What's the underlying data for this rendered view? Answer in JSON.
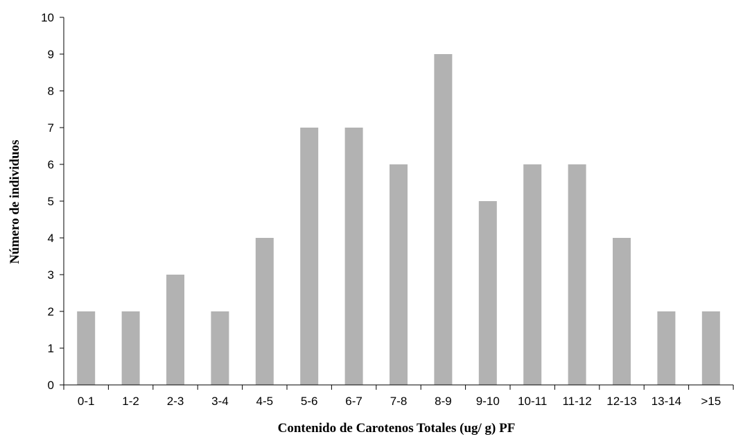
{
  "chart_data": {
    "type": "bar",
    "title": "",
    "xlabel": "Contenido de Carotenos Totales (ug/ g) PF",
    "ylabel": "Número de individuos",
    "categories": [
      "0-1",
      "1-2",
      "2-3",
      "3-4",
      "4-5",
      "5-6",
      "6-7",
      "7-8",
      "8-9",
      "9-10",
      "10-11",
      "11-12",
      "12-13",
      "13-14",
      ">15"
    ],
    "values": [
      2,
      2,
      3,
      2,
      4,
      7,
      7,
      6,
      9,
      5,
      6,
      6,
      4,
      2,
      2
    ],
    "ylim": [
      0,
      10
    ],
    "yticks": [
      0,
      1,
      2,
      3,
      4,
      5,
      6,
      7,
      8,
      9,
      10
    ],
    "grid": false,
    "legend": "none",
    "bar_color": "#b2b2b2",
    "axis_color": "#000000"
  }
}
